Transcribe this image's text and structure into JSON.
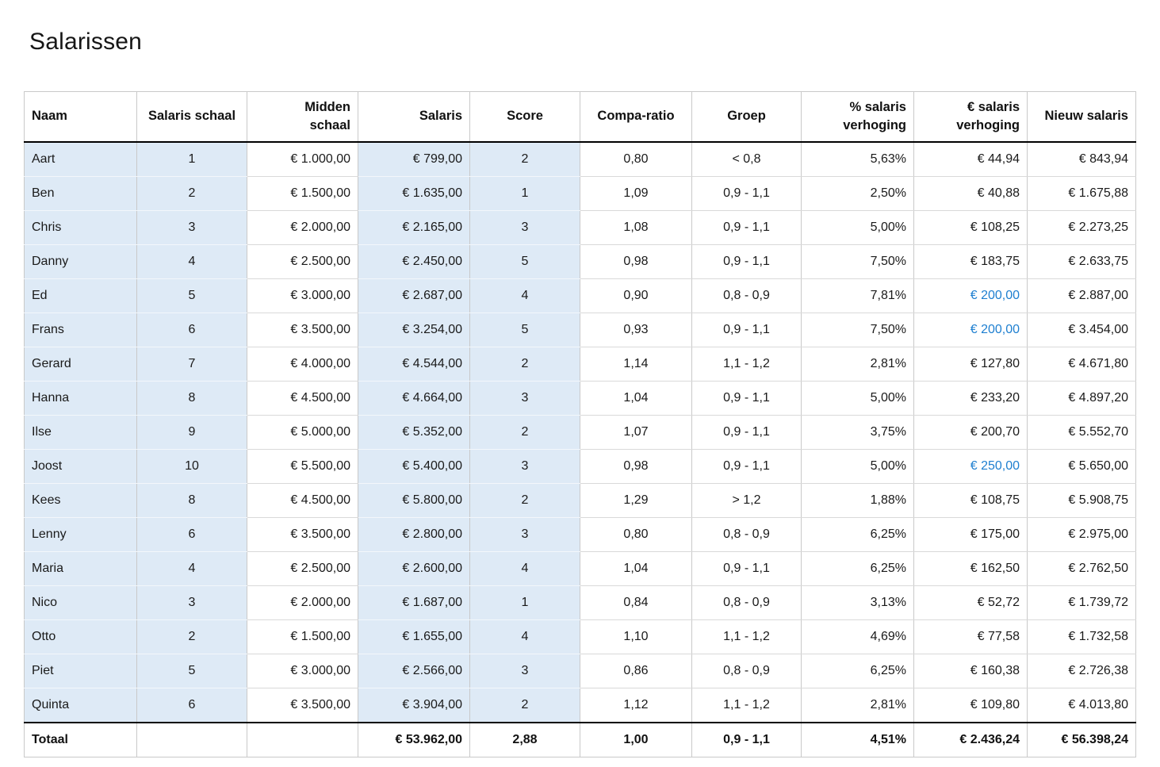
{
  "page": {
    "title": "Salarissen"
  },
  "colors": {
    "shaded_cell": "#DEEAF6",
    "highlight_text": "#1E7FD0"
  },
  "table": {
    "columns": [
      {
        "id": "naam",
        "label": "Naam",
        "align": "left",
        "header_align": "left",
        "shaded": true
      },
      {
        "id": "salaris-schaal",
        "label": "Salaris schaal",
        "align": "center",
        "header_align": "center",
        "shaded": true
      },
      {
        "id": "midden-schaal",
        "label": "Midden\nschaal",
        "align": "right",
        "header_align": "right",
        "shaded": false
      },
      {
        "id": "salaris",
        "label": "Salaris",
        "align": "right",
        "header_align": "right",
        "shaded": true
      },
      {
        "id": "score",
        "label": "Score",
        "align": "center",
        "header_align": "center",
        "shaded": true
      },
      {
        "id": "compa-ratio",
        "label": "Compa-ratio",
        "align": "center",
        "header_align": "center",
        "shaded": false
      },
      {
        "id": "groep",
        "label": "Groep",
        "align": "center",
        "header_align": "center",
        "shaded": false
      },
      {
        "id": "pct-verhoging",
        "label": "% salaris\nverhoging",
        "align": "right",
        "header_align": "right",
        "shaded": false
      },
      {
        "id": "eur-verhoging",
        "label": "€ salaris\nverhoging",
        "align": "right",
        "header_align": "right",
        "shaded": false
      },
      {
        "id": "nieuw-salaris",
        "label": "Nieuw salaris",
        "align": "right",
        "header_align": "right",
        "shaded": false
      }
    ],
    "rows": [
      {
        "cells": [
          "Aart",
          "1",
          "€ 1.000,00",
          "€ 799,00",
          "2",
          "0,80",
          "< 0,8",
          "5,63%",
          "€ 44,94",
          "€ 843,94"
        ]
      },
      {
        "cells": [
          "Ben",
          "2",
          "€ 1.500,00",
          "€ 1.635,00",
          "1",
          "1,09",
          "0,9 - 1,1",
          "2,50%",
          "€ 40,88",
          "€ 1.675,88"
        ]
      },
      {
        "cells": [
          "Chris",
          "3",
          "€ 2.000,00",
          "€ 2.165,00",
          "3",
          "1,08",
          "0,9 - 1,1",
          "5,00%",
          "€ 108,25",
          "€ 2.273,25"
        ]
      },
      {
        "cells": [
          "Danny",
          "4",
          "€ 2.500,00",
          "€ 2.450,00",
          "5",
          "0,98",
          "0,9 - 1,1",
          "7,50%",
          "€ 183,75",
          "€ 2.633,75"
        ]
      },
      {
        "cells": [
          "Ed",
          "5",
          "€ 3.000,00",
          "€ 2.687,00",
          "4",
          "0,90",
          "0,8 - 0,9",
          "7,81%",
          "€ 200,00",
          "€ 2.887,00"
        ],
        "highlight_cols": [
          8
        ]
      },
      {
        "cells": [
          "Frans",
          "6",
          "€ 3.500,00",
          "€ 3.254,00",
          "5",
          "0,93",
          "0,9 - 1,1",
          "7,50%",
          "€ 200,00",
          "€ 3.454,00"
        ],
        "highlight_cols": [
          8
        ]
      },
      {
        "cells": [
          "Gerard",
          "7",
          "€ 4.000,00",
          "€ 4.544,00",
          "2",
          "1,14",
          "1,1 - 1,2",
          "2,81%",
          "€ 127,80",
          "€ 4.671,80"
        ]
      },
      {
        "cells": [
          "Hanna",
          "8",
          "€ 4.500,00",
          "€ 4.664,00",
          "3",
          "1,04",
          "0,9 - 1,1",
          "5,00%",
          "€ 233,20",
          "€ 4.897,20"
        ]
      },
      {
        "cells": [
          "Ilse",
          "9",
          "€ 5.000,00",
          "€ 5.352,00",
          "2",
          "1,07",
          "0,9 - 1,1",
          "3,75%",
          "€ 200,70",
          "€ 5.552,70"
        ]
      },
      {
        "cells": [
          "Joost",
          "10",
          "€ 5.500,00",
          "€ 5.400,00",
          "3",
          "0,98",
          "0,9 - 1,1",
          "5,00%",
          "€ 250,00",
          "€ 5.650,00"
        ],
        "highlight_cols": [
          8
        ]
      },
      {
        "cells": [
          "Kees",
          "8",
          "€ 4.500,00",
          "€ 5.800,00",
          "2",
          "1,29",
          "> 1,2",
          "1,88%",
          "€ 108,75",
          "€ 5.908,75"
        ]
      },
      {
        "cells": [
          "Lenny",
          "6",
          "€ 3.500,00",
          "€ 2.800,00",
          "3",
          "0,80",
          "0,8 - 0,9",
          "6,25%",
          "€ 175,00",
          "€ 2.975,00"
        ]
      },
      {
        "cells": [
          "Maria",
          "4",
          "€ 2.500,00",
          "€ 2.600,00",
          "4",
          "1,04",
          "0,9 - 1,1",
          "6,25%",
          "€ 162,50",
          "€ 2.762,50"
        ]
      },
      {
        "cells": [
          "Nico",
          "3",
          "€ 2.000,00",
          "€ 1.687,00",
          "1",
          "0,84",
          "0,8 - 0,9",
          "3,13%",
          "€ 52,72",
          "€ 1.739,72"
        ]
      },
      {
        "cells": [
          "Otto",
          "2",
          "€ 1.500,00",
          "€ 1.655,00",
          "4",
          "1,10",
          "1,1 - 1,2",
          "4,69%",
          "€ 77,58",
          "€ 1.732,58"
        ]
      },
      {
        "cells": [
          "Piet",
          "5",
          "€ 3.000,00",
          "€ 2.566,00",
          "3",
          "0,86",
          "0,8 - 0,9",
          "6,25%",
          "€ 160,38",
          "€ 2.726,38"
        ]
      },
      {
        "cells": [
          "Quinta",
          "6",
          "€ 3.500,00",
          "€ 3.904,00",
          "2",
          "1,12",
          "1,1 - 1,2",
          "2,81%",
          "€ 109,80",
          "€ 4.013,80"
        ]
      }
    ],
    "total": {
      "cells": [
        "Totaal",
        "",
        "",
        "€ 53.962,00",
        "2,88",
        "1,00",
        "0,9 - 1,1",
        "4,51%",
        "€ 2.436,24",
        "€ 56.398,24"
      ]
    }
  }
}
